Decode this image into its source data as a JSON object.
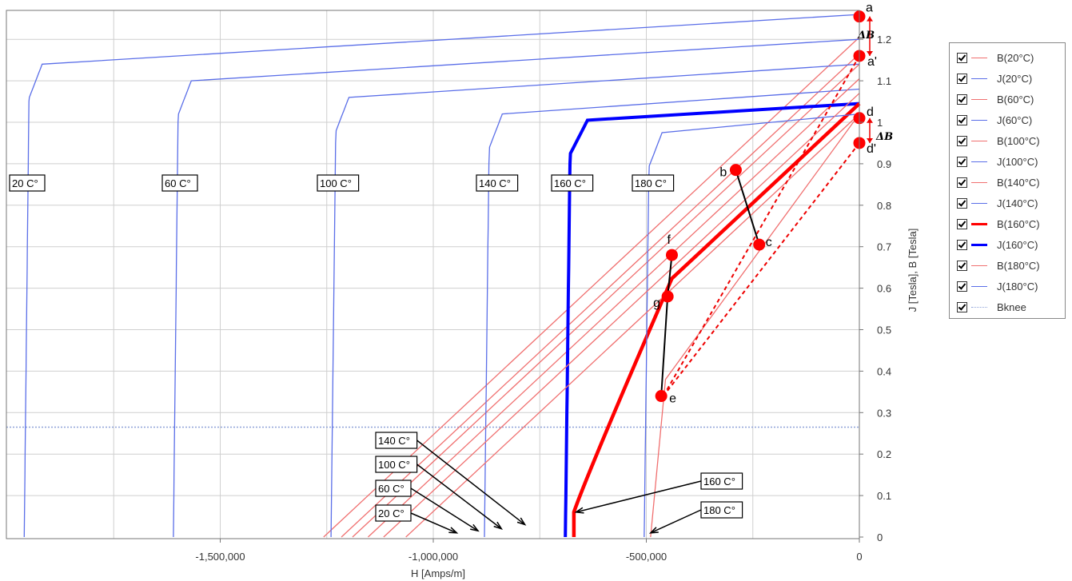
{
  "chart_data": {
    "type": "line",
    "xlabel": "H [Amps/m]",
    "ylabel": "J [Tesla], B [Tesla]",
    "xlim": [
      -2010000,
      0
    ],
    "ylim": [
      0,
      1.27
    ],
    "x_ticks": [
      -1500000,
      -1000000,
      -500000,
      0
    ],
    "x_tick_labels": [
      "-1,500,000",
      "-1,000,000",
      "-500,000",
      "0"
    ],
    "y_ticks": [
      0,
      0.1,
      0.2,
      0.3,
      0.4,
      0.5,
      0.6,
      0.7,
      0.8,
      0.9,
      1,
      1.1,
      1.2
    ],
    "y_tick_labels": [
      "0",
      "0.1",
      "0.2",
      "0.3",
      "0.4",
      "0.5",
      "0.6",
      "0.7",
      "0.8",
      "0.9",
      "1",
      "1.1",
      "1.2"
    ],
    "grid": true,
    "legend_position": "right",
    "colors": {
      "B": "#f07070",
      "J": "#5a6ee8",
      "B_bold": "#ff0000",
      "J_bold": "#0000ff",
      "knee": "#8fa3d8",
      "points": "#ff0000"
    },
    "temperatures": [
      {
        "temp": "20 C°",
        "Br": 1.205,
        "knee_H": -1960000,
        "sat_H": -1930000,
        "Jr": 1.26,
        "J_plateau": 1.14
      },
      {
        "temp": "60 C°",
        "Br": 1.165,
        "knee_H": -1610000,
        "sat_H": -1580000,
        "Jr": 1.2,
        "J_plateau": 1.1
      },
      {
        "temp": "100 C°",
        "Br": 1.14,
        "knee_H": -1240000,
        "sat_H": -1210000,
        "Jr": 1.14,
        "J_plateau": 1.06
      },
      {
        "temp": "140 C°",
        "Br": 1.105,
        "knee_H": -880000,
        "sat_H": -850000,
        "Jr": 1.08,
        "J_plateau": 1.02
      },
      {
        "temp": "160 C°",
        "Br": 1.045,
        "knee_H": -690000,
        "sat_H": -650000,
        "Jr": 1.045,
        "J_plateau": 1.005
      },
      {
        "temp": "180 C°",
        "Br": 1.02,
        "knee_H": -505000,
        "sat_H": -475000,
        "Jr": 1.02,
        "J_plateau": 0.975
      }
    ],
    "knee_line": {
      "name": "Bknee",
      "y": 0.265
    },
    "dashed_lines": [
      {
        "from": [
          0,
          1.16
        ],
        "to": [
          -460000,
          0.34
        ]
      },
      {
        "from": [
          0,
          0.95
        ],
        "to": [
          -460000,
          0.34
        ]
      }
    ],
    "points": [
      {
        "name": "a",
        "x": 0,
        "y": 1.255
      },
      {
        "name": "a'",
        "x": 0,
        "y": 1.16
      },
      {
        "name": "d",
        "x": 0,
        "y": 1.01
      },
      {
        "name": "d'",
        "x": 0,
        "y": 0.95
      },
      {
        "name": "b",
        "x": -290000,
        "y": 0.885
      },
      {
        "name": "c",
        "x": -235000,
        "y": 0.705
      },
      {
        "name": "f",
        "x": -440000,
        "y": 0.68
      },
      {
        "name": "g",
        "x": -450000,
        "y": 0.58
      },
      {
        "name": "e",
        "x": -465000,
        "y": 0.34
      }
    ],
    "segments": [
      [
        "b",
        "c"
      ],
      [
        "f",
        "g"
      ],
      [
        "g",
        "e"
      ]
    ],
    "delta_labels": [
      "ΔB",
      "ΔB"
    ],
    "curve_labels": [
      "20 C°",
      "60 C°",
      "100 C°",
      "140 C°",
      "160 C°",
      "180 C°"
    ],
    "callouts": [
      {
        "text": "140 C°",
        "tip_x": -785000,
        "tip_y": 0.03
      },
      {
        "text": "100 C°",
        "tip_x": -840000,
        "tip_y": 0.02
      },
      {
        "text": "60 C°",
        "tip_x": -895000,
        "tip_y": 0.015
      },
      {
        "text": "20 C°",
        "tip_x": -945000,
        "tip_y": 0.01
      },
      {
        "text": "160 C°",
        "tip_x": -665000,
        "tip_y": 0.06
      },
      {
        "text": "180 C°",
        "tip_x": -490000,
        "tip_y": 0.01
      }
    ]
  },
  "legend": {
    "items": [
      {
        "label": "B(20°C)",
        "color": "#f07070",
        "style": "solid",
        "width": 1.5
      },
      {
        "label": "J(20°C)",
        "color": "#5a6ee8",
        "style": "solid",
        "width": 1.5
      },
      {
        "label": "B(60°C)",
        "color": "#f07070",
        "style": "solid",
        "width": 1.5
      },
      {
        "label": "J(60°C)",
        "color": "#5a6ee8",
        "style": "solid",
        "width": 1.5
      },
      {
        "label": "B(100°C)",
        "color": "#f07070",
        "style": "solid",
        "width": 1.5
      },
      {
        "label": "J(100°C)",
        "color": "#5a6ee8",
        "style": "solid",
        "width": 1.5
      },
      {
        "label": "B(140°C)",
        "color": "#f07070",
        "style": "solid",
        "width": 1.5
      },
      {
        "label": "J(140°C)",
        "color": "#5a6ee8",
        "style": "solid",
        "width": 1.5
      },
      {
        "label": "B(160°C)",
        "color": "#ff0000",
        "style": "solid",
        "width": 3.5
      },
      {
        "label": "J(160°C)",
        "color": "#0000ff",
        "style": "solid",
        "width": 3.5
      },
      {
        "label": "B(180°C)",
        "color": "#f07070",
        "style": "solid",
        "width": 1.5
      },
      {
        "label": "J(180°C)",
        "color": "#5a6ee8",
        "style": "solid",
        "width": 1.5
      },
      {
        "label": "Bknee",
        "color": "#8fa3d8",
        "style": "dotted",
        "width": 1.5
      }
    ]
  }
}
